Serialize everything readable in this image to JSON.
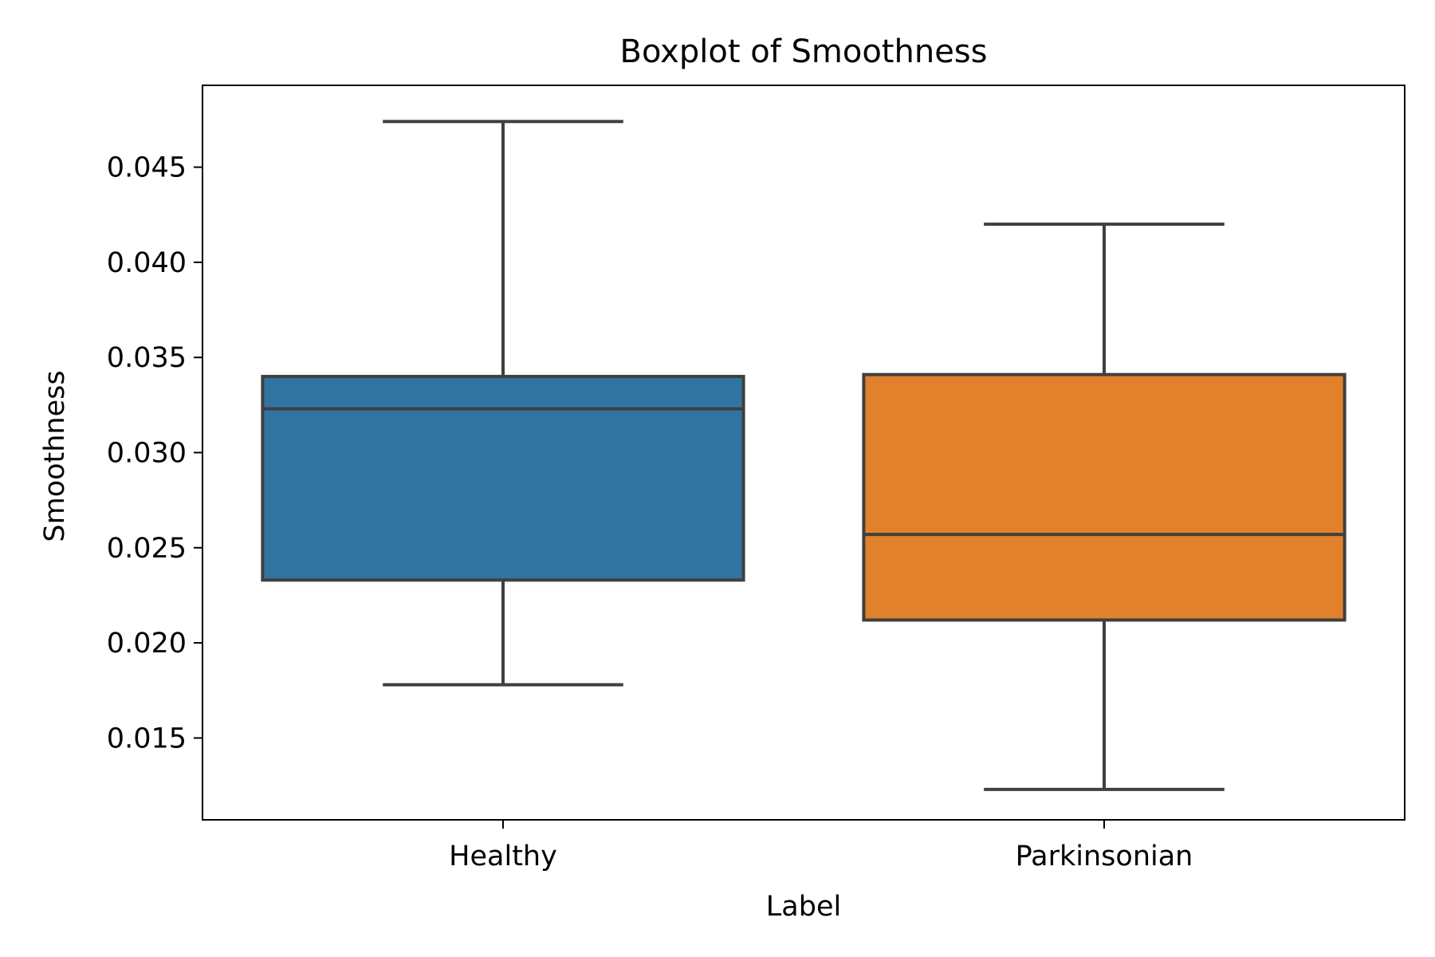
{
  "chart_data": {
    "type": "box",
    "title": "Boxplot of Smoothness",
    "xlabel": "Label",
    "ylabel": "Smoothness",
    "ylim": [
      0.0107,
      0.0493
    ],
    "yticks": [
      0.015,
      0.02,
      0.025,
      0.03,
      0.035,
      0.04,
      0.045
    ],
    "ytick_labels": [
      "0.015",
      "0.020",
      "0.025",
      "0.030",
      "0.035",
      "0.040",
      "0.045"
    ],
    "categories": [
      "Healthy",
      "Parkinsonian"
    ],
    "series": [
      {
        "category": "Healthy",
        "whisker_low": 0.0178,
        "q1": 0.0233,
        "median": 0.0323,
        "q3": 0.034,
        "whisker_high": 0.0474,
        "color": "#3274a1"
      },
      {
        "category": "Parkinsonian",
        "whisker_low": 0.0123,
        "q1": 0.0212,
        "median": 0.0257,
        "q3": 0.0341,
        "whisker_high": 0.042,
        "color": "#e1812c"
      }
    ],
    "line_color": "#3f3f3f",
    "grid": false,
    "legend": "none"
  }
}
